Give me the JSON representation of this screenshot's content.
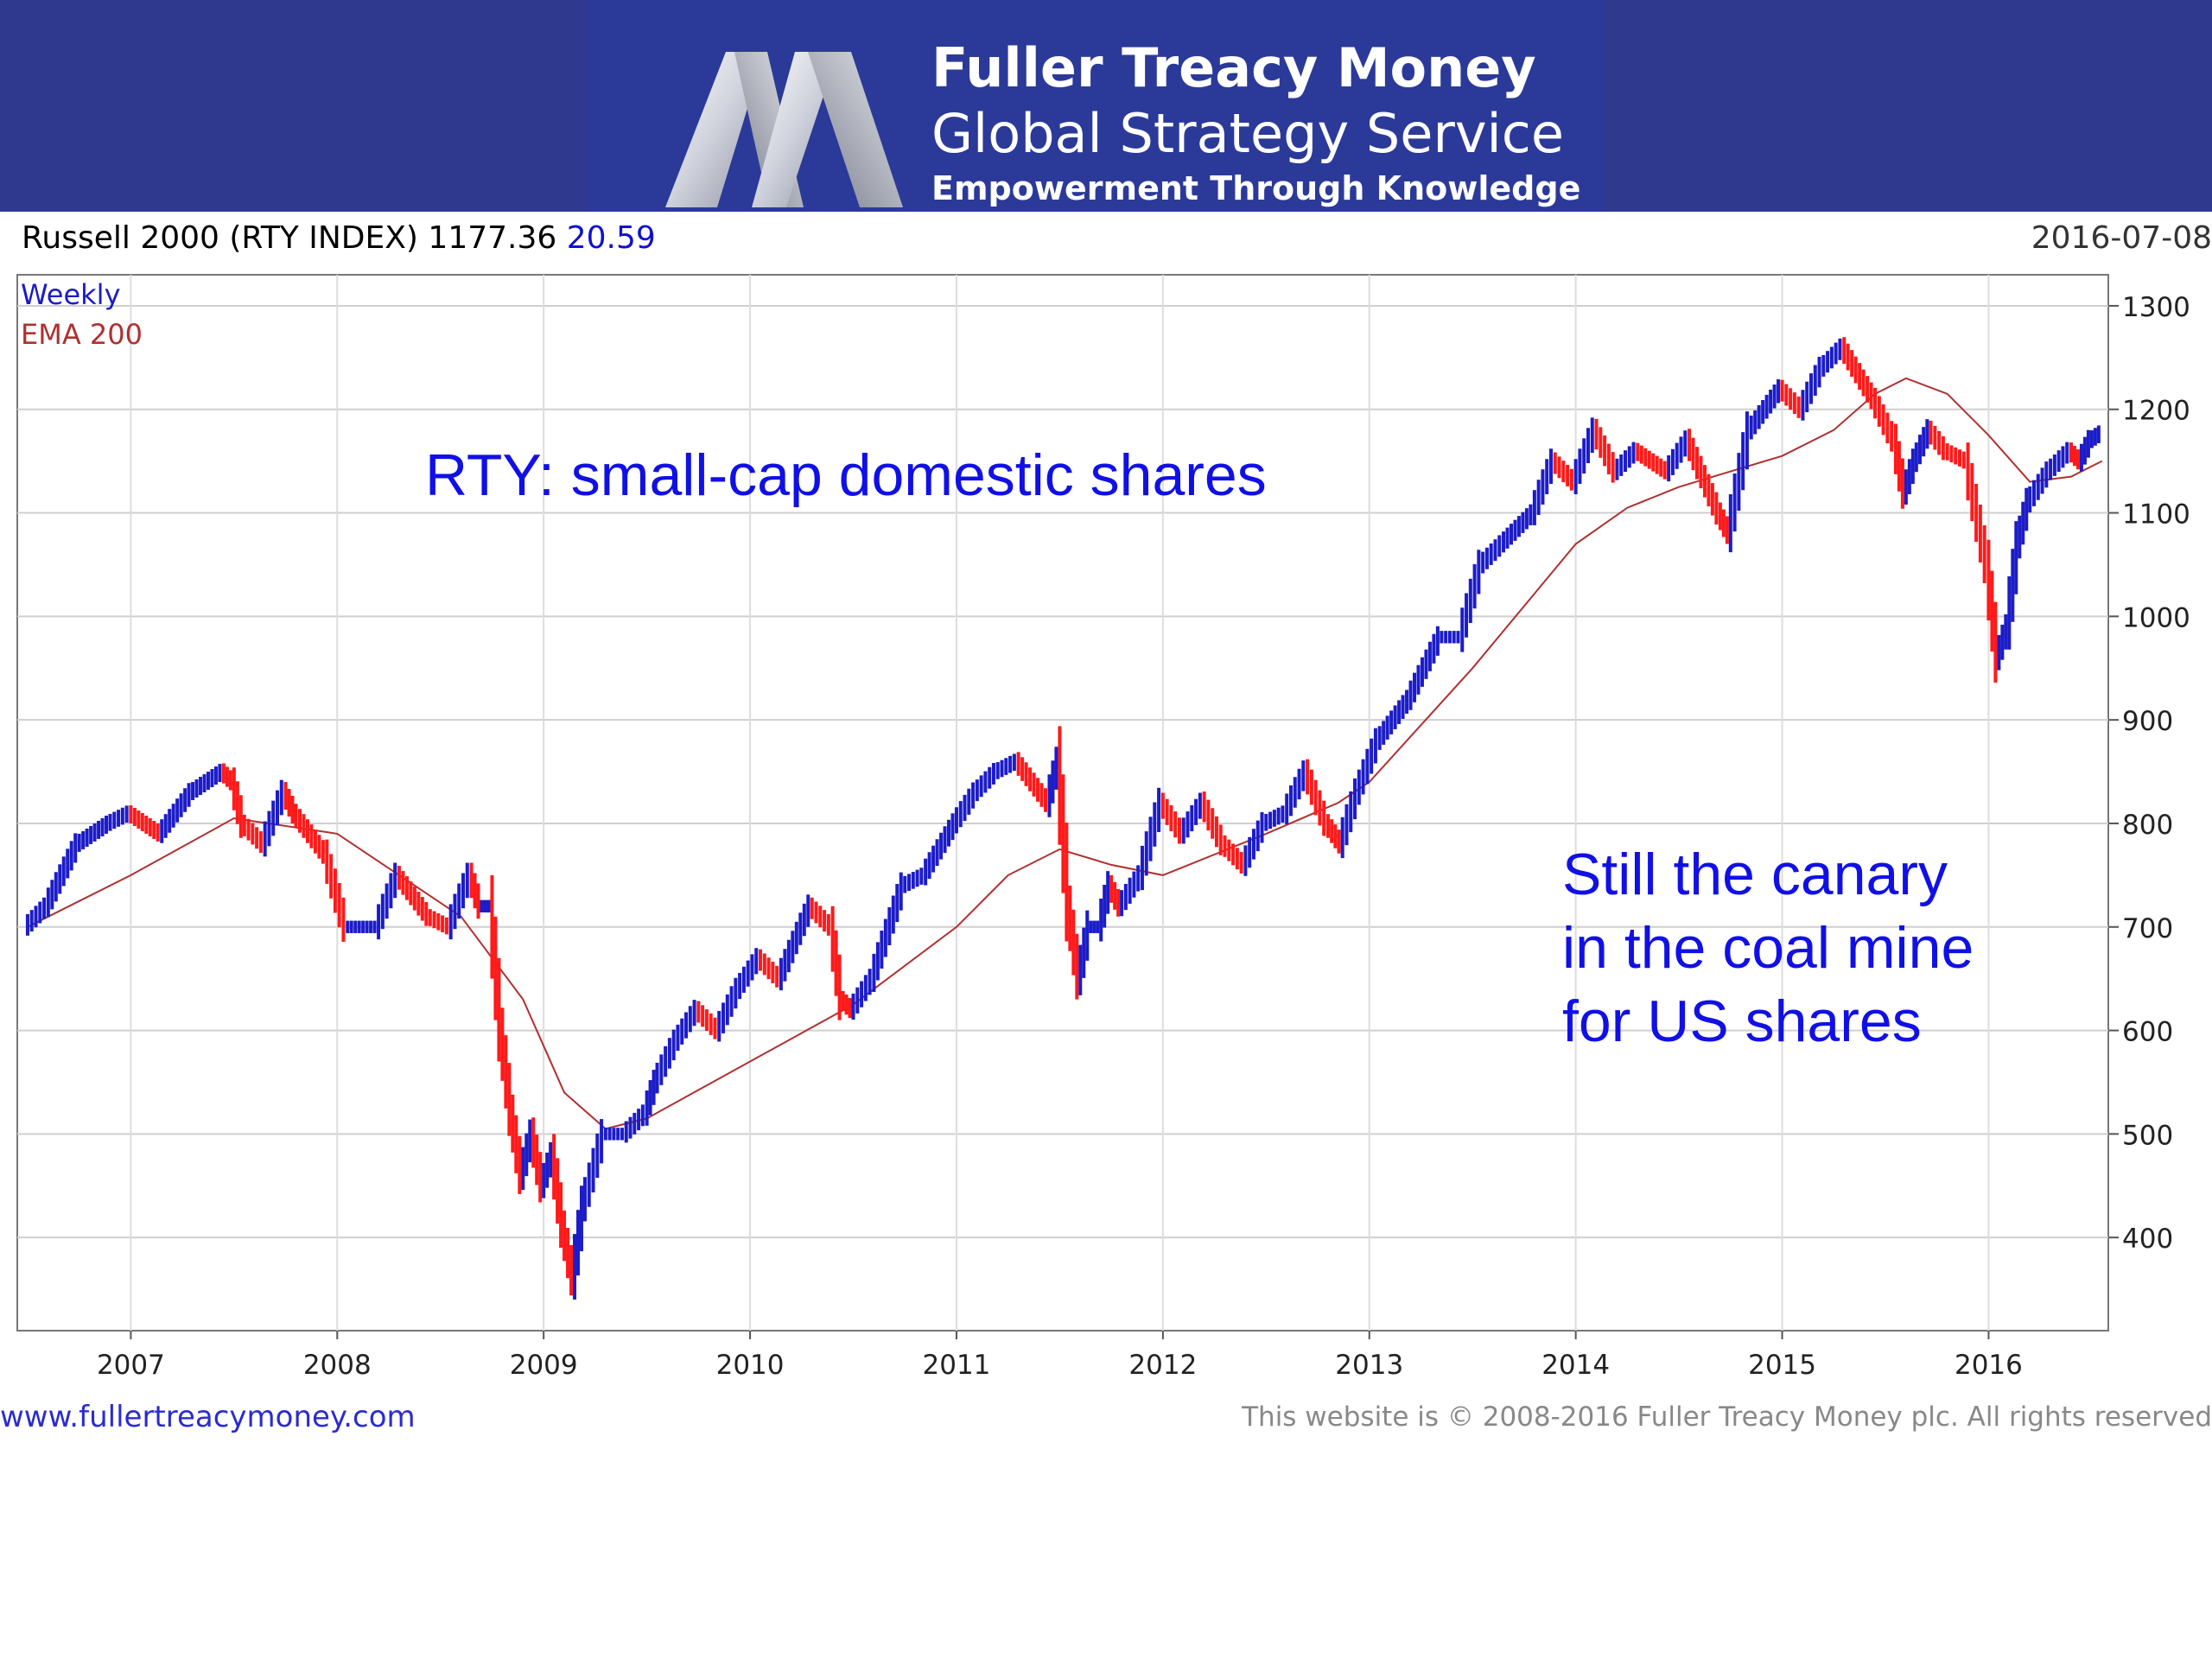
{
  "header": {
    "brand_name": "Fuller Treacy Money",
    "service_name": "Global Strategy Service",
    "tagline": "Empowerment Through Knowledge",
    "logo_icon": "ftm-m-logo-icon",
    "banner_color": "#2f3a8f"
  },
  "chart_header": {
    "title": "Russell 2000 (RTY INDEX) 1177.36",
    "change": "20.59",
    "date": "2016-07-08"
  },
  "chart_data": {
    "type": "line",
    "legend": [
      "Weekly",
      "EMA 200"
    ],
    "legend_placement": "top-left",
    "x_ticks": [
      "2007",
      "2008",
      "2009",
      "2010",
      "2011",
      "2012",
      "2013",
      "2014",
      "2015",
      "2016"
    ],
    "x_range": [
      2006.45,
      2016.58
    ],
    "y_ticks": [
      400,
      500,
      600,
      700,
      800,
      900,
      1000,
      1100,
      1200,
      1300
    ],
    "ylim": [
      310,
      1330
    ],
    "grid": true,
    "colors": {
      "up": "#1c1cc8",
      "down": "#ff1a1a",
      "ema": "#b03030",
      "legend_weekly": "#1c1cc8",
      "legend_ema": "#b03030"
    },
    "series": [
      {
        "name": "Weekly",
        "x": [
          2006.5,
          2006.6,
          2006.75,
          2006.9,
          2007.0,
          2007.15,
          2007.3,
          2007.45,
          2007.5,
          2007.55,
          2007.65,
          2007.75,
          2007.8,
          2007.95,
          2008.05,
          2008.2,
          2008.3,
          2008.45,
          2008.55,
          2008.65,
          2008.7,
          2008.75,
          2008.8,
          2008.85,
          2008.9,
          2008.95,
          2009.0,
          2009.05,
          2009.1,
          2009.15,
          2009.2,
          2009.3,
          2009.4,
          2009.5,
          2009.55,
          2009.65,
          2009.75,
          2009.85,
          2009.95,
          2010.05,
          2010.15,
          2010.3,
          2010.4,
          2010.45,
          2010.5,
          2010.6,
          2010.75,
          2010.85,
          2011.0,
          2011.1,
          2011.2,
          2011.3,
          2011.45,
          2011.5,
          2011.55,
          2011.6,
          2011.65,
          2011.7,
          2011.75,
          2011.8,
          2011.9,
          2012.0,
          2012.1,
          2012.2,
          2012.3,
          2012.4,
          2012.5,
          2012.6,
          2012.7,
          2012.8,
          2012.87,
          2012.95,
          2013.05,
          2013.2,
          2013.35,
          2013.45,
          2013.55,
          2013.65,
          2013.8,
          2013.9,
          2014.0,
          2014.1,
          2014.2,
          2014.3,
          2014.45,
          2014.55,
          2014.7,
          2014.75,
          2014.85,
          2015.0,
          2015.1,
          2015.2,
          2015.3,
          2015.45,
          2015.55,
          2015.6,
          2015.65,
          2015.72,
          2015.8,
          2015.9,
          2016.0,
          2016.05,
          2016.1,
          2016.15,
          2016.2,
          2016.3,
          2016.4,
          2016.45,
          2016.5,
          2016.55
        ],
        "values": [
          700,
          720,
          780,
          800,
          810,
          790,
          830,
          850,
          840,
          800,
          780,
          830,
          810,
          770,
          700,
          700,
          750,
          710,
          700,
          750,
          720,
          720,
          600,
          520,
          460,
          500,
          450,
          480,
          410,
          360,
          430,
          500,
          500,
          520,
          550,
          590,
          620,
          600,
          640,
          670,
          650,
          720,
          700,
          630,
          620,
          650,
          740,
          750,
          800,
          830,
          850,
          860,
          820,
          860,
          720,
          650,
          700,
          700,
          740,
          720,
          750,
          820,
          790,
          820,
          780,
          760,
          800,
          810,
          850,
          800,
          780,
          830,
          880,
          920,
          980,
          980,
          1050,
          1070,
          1100,
          1150,
          1130,
          1180,
          1140,
          1160,
          1140,
          1170,
          1100,
          1080,
          1180,
          1220,
          1200,
          1240,
          1260,
          1210,
          1170,
          1120,
          1150,
          1180,
          1160,
          1150,
          1050,
          960,
          990,
          1070,
          1110,
          1140,
          1160,
          1150,
          1170,
          1177
        ]
      },
      {
        "name": "EMA 200",
        "x": [
          2006.5,
          2007.0,
          2007.5,
          2008.0,
          2008.3,
          2008.6,
          2008.9,
          2009.1,
          2009.3,
          2009.5,
          2010.0,
          2010.5,
          2011.0,
          2011.25,
          2011.5,
          2011.75,
          2012.0,
          2012.5,
          2012.85,
          2013.0,
          2013.5,
          2014.0,
          2014.25,
          2014.5,
          2014.75,
          2015.0,
          2015.25,
          2015.45,
          2015.6,
          2015.8,
          2016.0,
          2016.2,
          2016.4,
          2016.55
        ],
        "values": [
          700,
          750,
          805,
          790,
          750,
          710,
          630,
          540,
          505,
          515,
          570,
          625,
          700,
          750,
          775,
          760,
          750,
          790,
          820,
          840,
          950,
          1070,
          1105,
          1125,
          1140,
          1155,
          1180,
          1215,
          1230,
          1215,
          1175,
          1130,
          1135,
          1150
        ]
      }
    ]
  },
  "annotations": {
    "top": "RTY: small-cap domestic shares",
    "right_lines": [
      "Still the canary",
      "in the coal mine",
      "for US shares"
    ],
    "color": "#1010e6"
  },
  "footer": {
    "url": "www.fullertreacymoney.com",
    "copyright": "This website is © 2008-2016 Fuller Treacy Money plc. All rights reserved"
  }
}
